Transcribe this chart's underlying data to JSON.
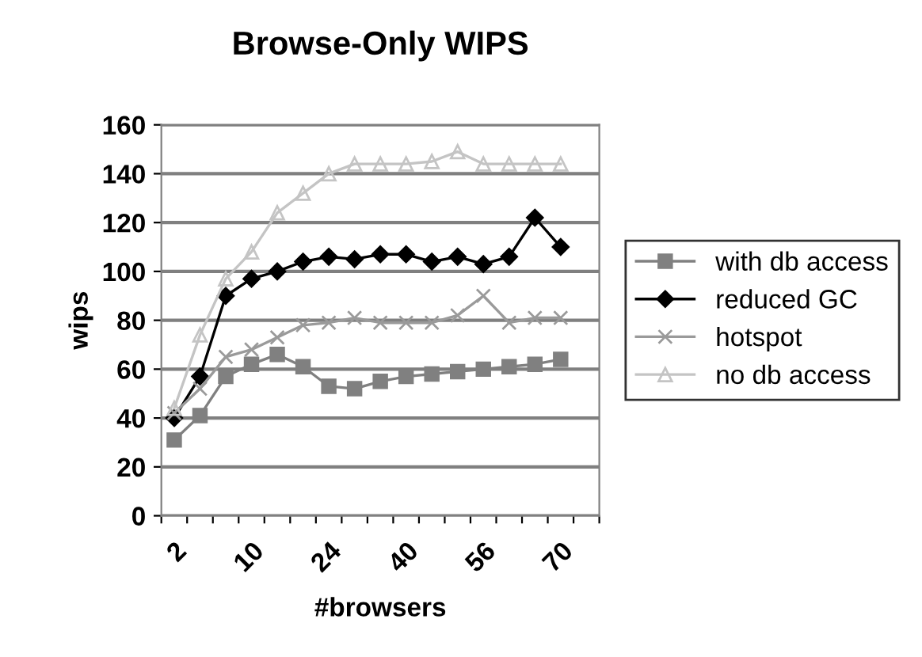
{
  "chart_data": {
    "type": "line",
    "title": "Browse-Only WIPS",
    "xlabel": "#browsers",
    "ylabel": "wips",
    "categories": [
      "2",
      null,
      null,
      "10",
      null,
      null,
      "24",
      null,
      null,
      "40",
      null,
      null,
      "56",
      null,
      null,
      "70",
      null
    ],
    "series": [
      {
        "name": "with db access",
        "color": "#808080",
        "marker": "square",
        "values": [
          31,
          41,
          57,
          62,
          66,
          61,
          53,
          52,
          55,
          57,
          58,
          59,
          60,
          61,
          62,
          64,
          null
        ]
      },
      {
        "name": "reduced GC",
        "color": "#000000",
        "marker": "diamond",
        "values": [
          40,
          57,
          90,
          97,
          100,
          104,
          106,
          105,
          107,
          107,
          104,
          106,
          103,
          106,
          122,
          110,
          null
        ]
      },
      {
        "name": "hotspot",
        "color": "#9a9a9a",
        "marker": "cross",
        "values": [
          42,
          52,
          65,
          68,
          73,
          78,
          79,
          81,
          79,
          79,
          79,
          82,
          90,
          79,
          81,
          81,
          null
        ]
      },
      {
        "name": "no db access",
        "color": "#c4c4c4",
        "marker": "triangle",
        "values": [
          44,
          74,
          97,
          108,
          124,
          132,
          140,
          144,
          144,
          144,
          145,
          149,
          144,
          144,
          144,
          144,
          null
        ]
      }
    ],
    "ylim": [
      0,
      160
    ],
    "yticks": [
      0,
      20,
      40,
      60,
      80,
      100,
      120,
      140,
      160
    ],
    "grid": "y",
    "legend": "right",
    "line_style": "solid"
  }
}
